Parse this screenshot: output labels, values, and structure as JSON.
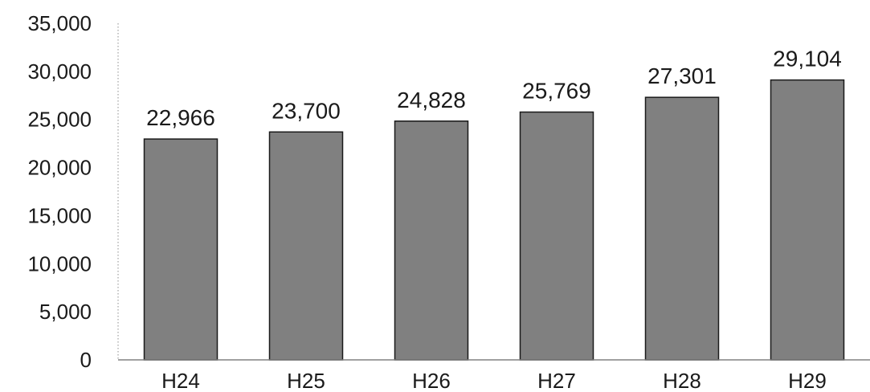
{
  "chart_data": {
    "type": "bar",
    "categories": [
      "H24",
      "H25",
      "H26",
      "H27",
      "H28",
      "H29"
    ],
    "values": [
      22966,
      23700,
      24828,
      25769,
      27301,
      29104
    ],
    "data_labels": [
      "22,966",
      "23,700",
      "24,828",
      "25,769",
      "27,301",
      "29,104"
    ],
    "y_ticks": [
      0,
      5000,
      10000,
      15000,
      20000,
      25000,
      30000,
      35000
    ],
    "y_tick_labels": [
      "0",
      "5,000",
      "10,000",
      "15,000",
      "20,000",
      "25,000",
      "30,000",
      "35,000"
    ],
    "ylim": [
      0,
      35000
    ],
    "grid": false,
    "bar_color": "#808080",
    "bar_edge_color": "#1a1a1a",
    "title": "",
    "xlabel": "",
    "ylabel": ""
  }
}
